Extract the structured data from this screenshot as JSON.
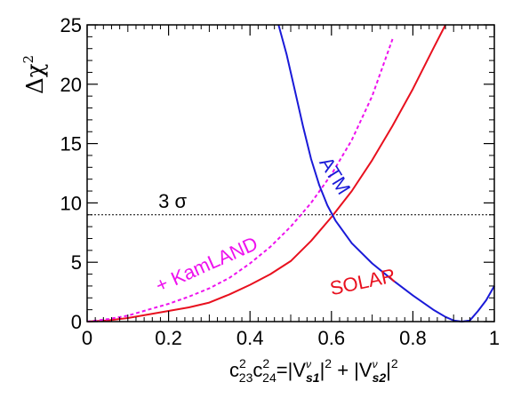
{
  "chart_data": {
    "type": "line",
    "xlabel": {
      "c": "c",
      "sup2a": "2",
      "sub23": "23",
      "c2": "c",
      "sup2b": "2",
      "sub24": "24",
      "eq": "=|V",
      "nu1": "ν",
      "s1": "s1",
      "abs1": "|",
      "sq1": "2",
      "plus": " + |V",
      "nu2": "ν",
      "s2": "s2",
      "abs2": "|",
      "sq2": "2"
    },
    "ylabel": {
      "delta": "Δχ",
      "sup": "2"
    },
    "xlim": [
      0,
      1
    ],
    "ylim": [
      0,
      25
    ],
    "xticks": [
      0,
      0.2,
      0.4,
      0.6,
      0.8,
      1
    ],
    "xtick_labels": [
      "0",
      "0.2",
      "0.4",
      "0.6",
      "0.8",
      "1"
    ],
    "yticks": [
      0,
      5,
      10,
      15,
      20,
      25
    ],
    "ytick_labels": [
      "0",
      "5",
      "10",
      "15",
      "20",
      "25"
    ],
    "hline": {
      "y": 9,
      "label": "3 σ",
      "color": "#000000"
    },
    "series": [
      {
        "name": "SOLAR",
        "color": "#e8101e",
        "dashed": false,
        "x": [
          0,
          0.05,
          0.1,
          0.15,
          0.2,
          0.25,
          0.3,
          0.35,
          0.4,
          0.45,
          0.5,
          0.55,
          0.6,
          0.65,
          0.7,
          0.75,
          0.8,
          0.85,
          0.88
        ],
        "y": [
          0,
          0.1,
          0.3,
          0.6,
          0.9,
          1.2,
          1.6,
          2.3,
          3.1,
          4.0,
          5.1,
          6.8,
          8.8,
          11.0,
          13.6,
          16.5,
          19.6,
          23.0,
          25.0
        ]
      },
      {
        "name": "+ KamLAND",
        "color": "#ee12ee",
        "dashed": true,
        "x": [
          0,
          0.05,
          0.1,
          0.15,
          0.2,
          0.25,
          0.3,
          0.35,
          0.4,
          0.45,
          0.5,
          0.55,
          0.6,
          0.65,
          0.7,
          0.75
        ],
        "y": [
          0,
          0.2,
          0.5,
          1.0,
          1.5,
          2.1,
          2.8,
          3.7,
          4.9,
          6.3,
          8.0,
          10.0,
          12.4,
          15.3,
          19.0,
          23.8
        ]
      },
      {
        "name": "ATM",
        "color": "#1a1ad8",
        "dashed": false,
        "x": [
          0.47,
          0.49,
          0.51,
          0.53,
          0.55,
          0.57,
          0.59,
          0.61,
          0.65,
          0.7,
          0.75,
          0.8,
          0.85,
          0.88,
          0.9,
          0.92,
          0.94,
          0.96,
          0.98,
          1.0
        ],
        "y": [
          25.0,
          22.5,
          19.5,
          16.5,
          13.7,
          11.5,
          9.8,
          8.5,
          6.6,
          4.9,
          3.5,
          2.2,
          1.0,
          0.4,
          0.1,
          0.0,
          0.1,
          0.9,
          1.8,
          3.0
        ]
      }
    ],
    "annotations": [
      {
        "text": "SOLAR",
        "color": "#e8101e",
        "x": 0.68,
        "y": 2.8,
        "rotate": -12
      },
      {
        "text": "+ KamLAND",
        "color": "#ee12ee",
        "x": 0.3,
        "y": 4.3,
        "rotate": -24
      },
      {
        "text": "ATM",
        "color": "#1a1ad8",
        "x": 0.595,
        "y": 12.0,
        "rotate": 58
      }
    ]
  }
}
